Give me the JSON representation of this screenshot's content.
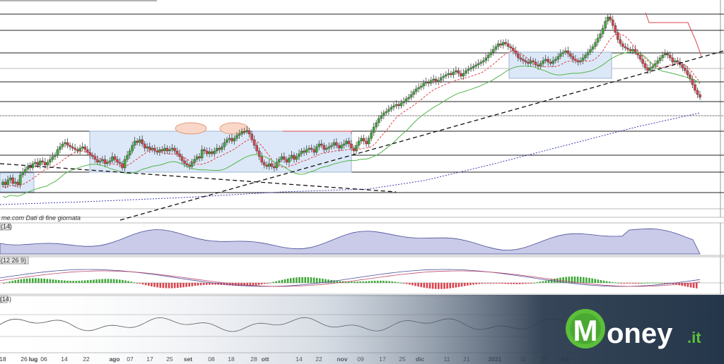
{
  "chart_data": {
    "type": "candlestick",
    "source_note": "me.com  Dati di fine giornata",
    "x_tick_labels": [
      "18",
      "26",
      "lug",
      "06",
      "14",
      "22",
      "ago",
      "07",
      "17",
      "25",
      "set",
      "08",
      "18",
      "28",
      "ott",
      "14",
      "22",
      "nov",
      "09",
      "17",
      "25",
      "dic",
      "11",
      "21",
      "2021",
      "11",
      "21",
      "feb"
    ],
    "support_resistance_levels": [
      20,
      43,
      75,
      116,
      144,
      186,
      220,
      244,
      273
    ],
    "price_series": {
      "close": [
        258,
        262,
        255,
        252,
        260,
        258,
        262,
        248,
        244,
        240,
        236,
        238,
        232,
        230,
        234,
        228,
        230,
        234,
        230,
        226,
        222,
        220,
        212,
        208,
        204,
        202,
        206,
        208,
        210,
        212,
        214,
        210,
        208,
        212,
        216,
        220,
        222,
        226,
        230,
        228,
        226,
        232,
        230,
        228,
        222,
        226,
        230,
        232,
        238,
        226,
        220,
        214,
        206,
        200,
        202,
        198,
        204,
        210,
        208,
        212,
        210,
        214,
        216,
        212,
        214,
        210,
        214,
        212,
        210,
        214,
        218,
        222,
        228,
        232,
        234,
        236,
        230,
        226,
        222,
        224,
        212,
        214,
        218,
        215,
        218,
        214,
        210,
        212,
        208,
        202,
        198,
        196,
        200,
        196,
        192,
        190,
        186,
        186,
        185,
        190,
        198,
        206,
        214,
        222,
        230,
        234,
        236,
        232,
        236,
        238,
        230,
        226,
        222,
        226,
        230,
        224,
        220,
        226,
        222,
        218,
        214,
        216,
        212,
        210,
        212,
        216,
        208,
        204,
        206,
        212,
        210,
        208,
        206,
        202,
        206,
        210,
        206,
        204,
        200,
        204,
        210,
        214,
        206,
        200,
        196,
        200,
        204,
        196,
        188,
        180,
        174,
        168,
        164,
        160,
        158,
        155,
        152,
        150,
        148,
        150,
        146,
        144,
        140,
        138,
        134,
        130,
        126,
        124,
        122,
        118,
        116,
        118,
        114,
        112,
        116,
        114,
        110,
        108,
        106,
        104,
        106,
        102,
        100,
        104,
        108,
        104,
        100,
        98,
        96,
        94,
        92,
        90,
        88,
        86,
        82,
        78,
        74,
        70,
        66,
        62,
        64,
        60,
        62,
        66,
        68,
        72,
        76,
        82,
        84,
        86,
        88,
        90,
        86,
        88,
        92,
        94,
        90,
        86,
        84,
        88,
        90,
        86,
        84,
        80,
        76,
        74,
        72,
        76,
        80,
        84,
        86,
        88,
        86,
        82,
        78,
        74,
        70,
        66,
        60,
        54,
        48,
        40,
        30,
        24,
        28,
        36,
        46,
        56,
        62,
        66,
        68,
        70,
        72,
        70,
        74,
        78,
        84,
        90,
        96,
        100,
        96,
        94,
        90,
        86,
        82,
        78,
        76,
        78,
        82,
        88,
        86,
        88,
        92,
        96,
        100,
        106,
        112,
        120,
        128,
        134,
        138
      ]
    },
    "bollinger_like_box_1": {
      "x_start_index": 0,
      "x_end_index": 18
    },
    "indicators": [
      {
        "label": "(14)",
        "type": "area"
      },
      {
        "label": "(12 26 9)",
        "type": "macd"
      },
      {
        "label": "(14)",
        "type": "line"
      }
    ]
  },
  "brand": {
    "name": "Money",
    "suffix": ".it"
  },
  "colors": {
    "bull": "#41a83a",
    "bear": "#d9434d",
    "sma_red": "#d9434d",
    "sma_green": "#52b54a",
    "sma_blue": "#3e3fb3",
    "trend_dash": "#111111",
    "box_fill": "#dce8f7",
    "box_stroke": "#9db6d6",
    "band_blue": "#3e3fb3",
    "footer_dark": "#2c3c4f"
  }
}
